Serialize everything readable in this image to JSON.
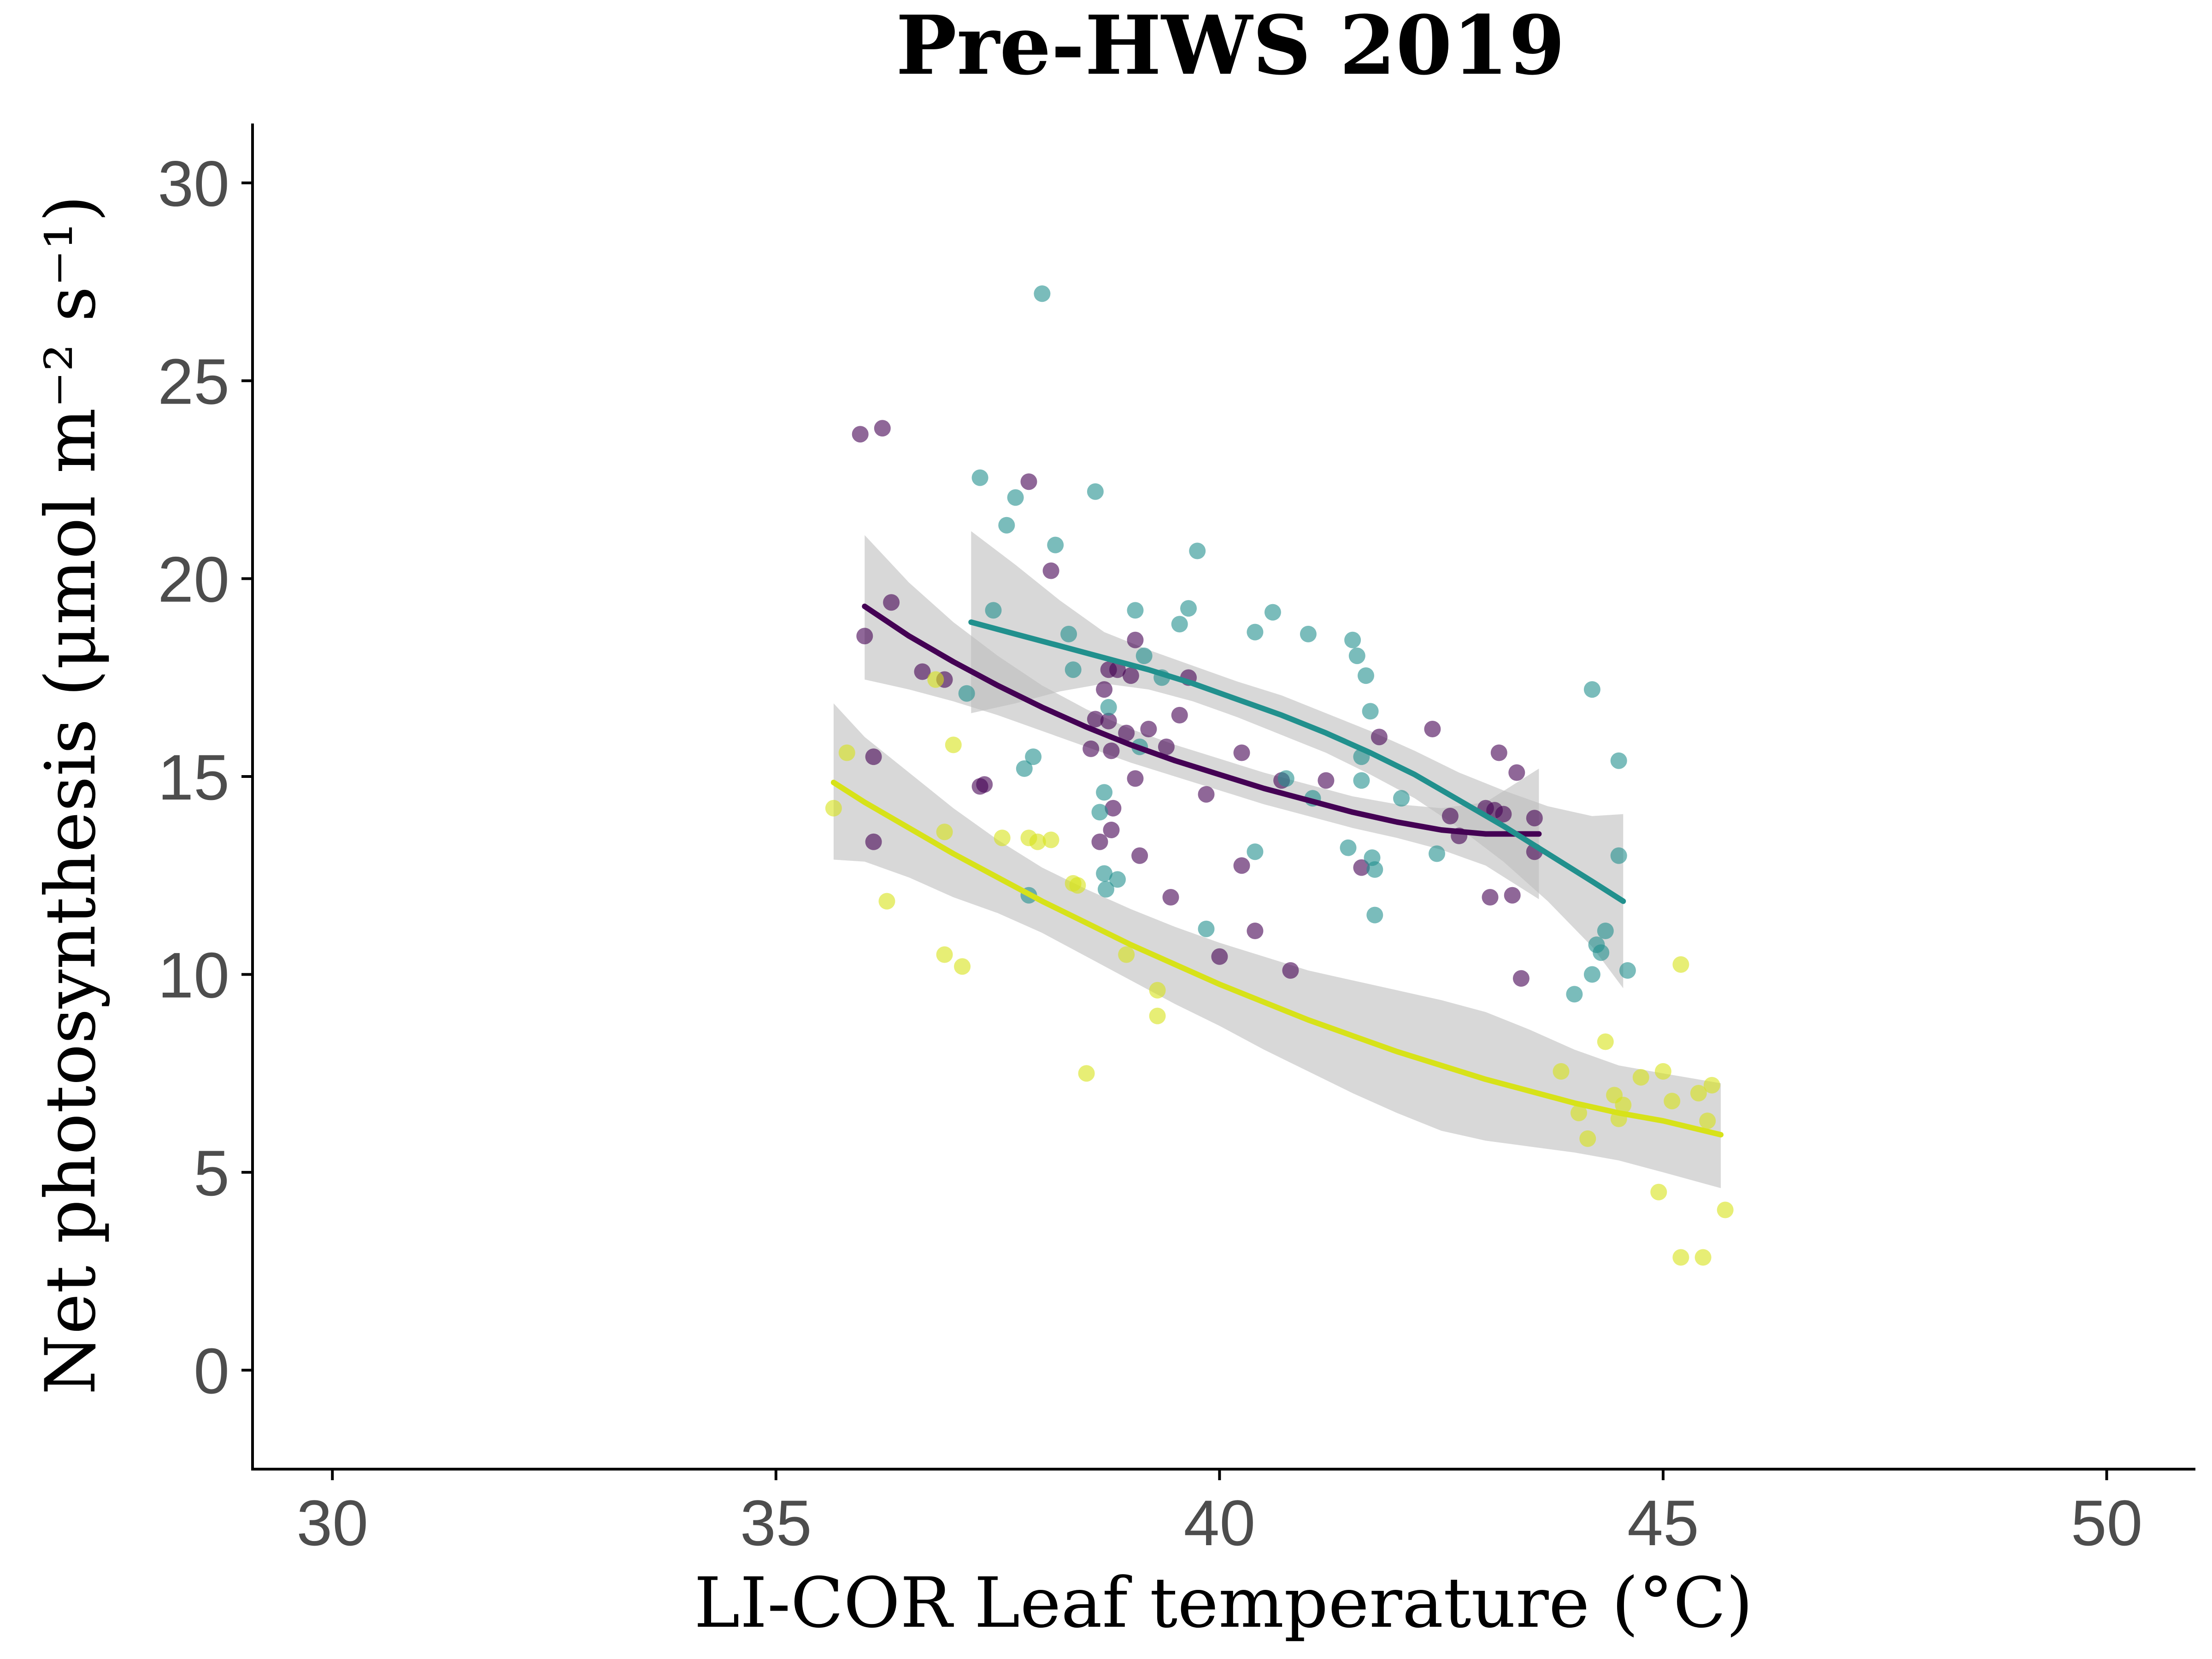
{
  "chart_data": {
    "type": "scatter",
    "title": "Pre-HWS 2019",
    "xlabel": "LI-COR Leaf temperature (°C)",
    "ylabel": "Net photosynthesis (μmol m⁻² s⁻¹)",
    "xlim": [
      29.1,
      51.0
    ],
    "ylim": [
      -2.5,
      31.5
    ],
    "xticks": [
      30,
      35,
      40,
      45,
      50
    ],
    "yticks": [
      0,
      5,
      10,
      15,
      20,
      25,
      30
    ],
    "grid": false,
    "legend": "none",
    "series": [
      {
        "name": "purple",
        "color": "#440154",
        "fit_color": "#440154",
        "points": [
          [
            35.95,
            23.65
          ],
          [
            36.2,
            23.8
          ],
          [
            36.0,
            18.55
          ],
          [
            36.1,
            15.5
          ],
          [
            36.1,
            13.35
          ],
          [
            36.3,
            19.4
          ],
          [
            36.65,
            17.65
          ],
          [
            36.9,
            17.45
          ],
          [
            37.3,
            14.75
          ],
          [
            37.35,
            14.8
          ],
          [
            37.85,
            22.45
          ],
          [
            38.1,
            20.2
          ],
          [
            38.55,
            15.7
          ],
          [
            38.6,
            16.45
          ],
          [
            38.65,
            13.35
          ],
          [
            38.7,
            17.2
          ],
          [
            38.75,
            17.7
          ],
          [
            38.75,
            16.4
          ],
          [
            38.78,
            15.65
          ],
          [
            38.78,
            13.65
          ],
          [
            38.8,
            14.2
          ],
          [
            38.85,
            17.7
          ],
          [
            38.95,
            16.1
          ],
          [
            39.0,
            17.55
          ],
          [
            39.05,
            18.45
          ],
          [
            39.05,
            14.95
          ],
          [
            39.1,
            13.0
          ],
          [
            39.2,
            16.2
          ],
          [
            39.4,
            15.75
          ],
          [
            39.45,
            11.95
          ],
          [
            39.55,
            16.55
          ],
          [
            39.65,
            17.5
          ],
          [
            39.85,
            14.55
          ],
          [
            40.0,
            10.45
          ],
          [
            40.25,
            15.6
          ],
          [
            40.25,
            12.75
          ],
          [
            40.4,
            11.1
          ],
          [
            40.7,
            14.9
          ],
          [
            40.8,
            10.1
          ],
          [
            41.2,
            14.9
          ],
          [
            41.6,
            12.7
          ],
          [
            41.8,
            16.0
          ],
          [
            42.4,
            16.2
          ],
          [
            42.6,
            14.0
          ],
          [
            42.7,
            13.5
          ],
          [
            43.0,
            14.2
          ],
          [
            43.05,
            11.95
          ],
          [
            43.1,
            14.15
          ],
          [
            43.15,
            15.6
          ],
          [
            43.2,
            14.05
          ],
          [
            43.3,
            12.0
          ],
          [
            43.35,
            15.1
          ],
          [
            43.4,
            9.9
          ],
          [
            43.55,
            13.95
          ],
          [
            43.55,
            13.1
          ]
        ],
        "fit_x": [
          36.0,
          36.5,
          37.0,
          37.5,
          38.0,
          38.5,
          39.0,
          39.5,
          40.0,
          40.5,
          41.0,
          41.5,
          42.0,
          42.5,
          43.0,
          43.6
        ],
        "fit_y": [
          19.3,
          18.55,
          17.9,
          17.3,
          16.75,
          16.25,
          15.8,
          15.4,
          15.05,
          14.7,
          14.4,
          14.1,
          13.85,
          13.65,
          13.55,
          13.55
        ],
        "band_lower": [
          17.45,
          17.2,
          16.9,
          16.55,
          16.15,
          15.75,
          15.35,
          15.0,
          14.65,
          14.3,
          14.0,
          13.7,
          13.45,
          13.15,
          12.75,
          11.9
        ],
        "band_upper": [
          21.1,
          19.9,
          18.9,
          18.05,
          17.3,
          16.7,
          16.2,
          15.8,
          15.45,
          15.1,
          14.8,
          14.5,
          14.3,
          14.2,
          14.35,
          15.2
        ]
      },
      {
        "name": "teal",
        "color": "#21908d",
        "fit_color": "#21908d",
        "points": [
          [
            37.15,
            17.1
          ],
          [
            37.3,
            22.55
          ],
          [
            37.45,
            19.2
          ],
          [
            37.6,
            21.35
          ],
          [
            37.7,
            22.05
          ],
          [
            37.8,
            15.2
          ],
          [
            37.85,
            12.0
          ],
          [
            37.9,
            15.5
          ],
          [
            38.0,
            27.2
          ],
          [
            38.15,
            20.85
          ],
          [
            38.3,
            18.6
          ],
          [
            38.35,
            17.7
          ],
          [
            38.6,
            22.2
          ],
          [
            38.65,
            14.1
          ],
          [
            38.7,
            14.6
          ],
          [
            38.7,
            12.55
          ],
          [
            38.72,
            12.15
          ],
          [
            38.75,
            16.75
          ],
          [
            38.85,
            12.4
          ],
          [
            39.05,
            19.2
          ],
          [
            39.1,
            15.75
          ],
          [
            39.15,
            18.05
          ],
          [
            39.35,
            17.5
          ],
          [
            39.55,
            18.85
          ],
          [
            39.65,
            19.25
          ],
          [
            39.75,
            20.7
          ],
          [
            39.85,
            11.15
          ],
          [
            40.4,
            18.65
          ],
          [
            40.4,
            13.1
          ],
          [
            40.6,
            19.15
          ],
          [
            40.75,
            14.95
          ],
          [
            41.0,
            18.6
          ],
          [
            41.05,
            14.45
          ],
          [
            41.45,
            13.2
          ],
          [
            41.5,
            18.45
          ],
          [
            41.55,
            18.05
          ],
          [
            41.6,
            15.5
          ],
          [
            41.6,
            14.9
          ],
          [
            41.65,
            17.55
          ],
          [
            41.7,
            16.65
          ],
          [
            41.72,
            12.95
          ],
          [
            41.75,
            11.5
          ],
          [
            41.75,
            12.65
          ],
          [
            42.05,
            14.45
          ],
          [
            42.45,
            13.05
          ],
          [
            44.0,
            9.5
          ],
          [
            44.2,
            17.2
          ],
          [
            44.2,
            10.0
          ],
          [
            44.25,
            10.75
          ],
          [
            44.3,
            10.55
          ],
          [
            44.35,
            11.1
          ],
          [
            44.5,
            15.4
          ],
          [
            44.5,
            13.0
          ],
          [
            44.6,
            10.1
          ]
        ],
        "fit_x": [
          37.2,
          37.7,
          38.2,
          38.7,
          39.2,
          39.7,
          40.2,
          40.7,
          41.2,
          41.7,
          42.2,
          42.7,
          43.2,
          43.7,
          44.2,
          44.55
        ],
        "fit_y": [
          18.9,
          18.6,
          18.3,
          18.0,
          17.7,
          17.35,
          16.95,
          16.55,
          16.1,
          15.6,
          15.05,
          14.4,
          13.75,
          13.05,
          12.35,
          11.85
        ],
        "band_lower": [
          16.6,
          16.85,
          17.15,
          17.35,
          17.2,
          16.9,
          16.5,
          16.05,
          15.6,
          15.05,
          14.45,
          13.7,
          12.85,
          11.85,
          10.7,
          9.65
        ],
        "band_upper": [
          21.2,
          20.35,
          19.45,
          18.65,
          18.2,
          17.8,
          17.4,
          17.05,
          16.6,
          16.15,
          15.65,
          15.1,
          14.65,
          14.25,
          14.0,
          14.05
        ]
      },
      {
        "name": "yellow",
        "color": "#d7e219",
        "fit_color": "#d7e219",
        "points": [
          [
            35.65,
            14.2
          ],
          [
            35.8,
            15.6
          ],
          [
            36.25,
            11.85
          ],
          [
            36.8,
            17.45
          ],
          [
            36.9,
            13.6
          ],
          [
            36.9,
            10.5
          ],
          [
            37.0,
            15.8
          ],
          [
            37.1,
            10.2
          ],
          [
            37.55,
            13.45
          ],
          [
            37.85,
            13.45
          ],
          [
            37.95,
            13.35
          ],
          [
            38.1,
            13.4
          ],
          [
            38.35,
            12.3
          ],
          [
            38.4,
            12.25
          ],
          [
            38.5,
            7.5
          ],
          [
            38.95,
            10.5
          ],
          [
            39.3,
            9.6
          ],
          [
            39.3,
            8.95
          ],
          [
            43.85,
            7.55
          ],
          [
            44.05,
            6.5
          ],
          [
            44.15,
            5.85
          ],
          [
            44.35,
            8.3
          ],
          [
            44.45,
            6.95
          ],
          [
            44.5,
            6.35
          ],
          [
            44.55,
            6.7
          ],
          [
            44.75,
            7.4
          ],
          [
            44.95,
            4.5
          ],
          [
            45.0,
            7.55
          ],
          [
            45.1,
            6.8
          ],
          [
            45.2,
            10.25
          ],
          [
            45.2,
            2.85
          ],
          [
            45.4,
            7.0
          ],
          [
            45.45,
            2.85
          ],
          [
            45.5,
            6.3
          ],
          [
            45.55,
            7.2
          ],
          [
            45.7,
            4.05
          ]
        ],
        "fit_x": [
          35.65,
          36.0,
          36.5,
          37.0,
          37.5,
          38.0,
          38.5,
          39.0,
          39.5,
          40.0,
          40.5,
          41.0,
          41.5,
          42.0,
          42.5,
          43.0,
          43.5,
          44.0,
          44.5,
          45.0,
          45.65
        ],
        "fit_y": [
          14.85,
          14.35,
          13.7,
          13.05,
          12.45,
          11.85,
          11.3,
          10.75,
          10.25,
          9.75,
          9.3,
          8.85,
          8.45,
          8.05,
          7.7,
          7.35,
          7.05,
          6.75,
          6.5,
          6.3,
          5.95
        ],
        "band_lower": [
          12.9,
          12.85,
          12.45,
          11.95,
          11.55,
          11.05,
          10.45,
          9.85,
          9.25,
          8.7,
          8.1,
          7.55,
          7.0,
          6.5,
          6.05,
          5.8,
          5.65,
          5.5,
          5.3,
          5.0,
          4.6
        ],
        "band_upper": [
          16.85,
          16.0,
          15.1,
          14.2,
          13.4,
          12.7,
          12.15,
          11.65,
          11.2,
          10.8,
          10.45,
          10.1,
          9.85,
          9.6,
          9.35,
          9.05,
          8.6,
          8.1,
          7.7,
          7.5,
          7.25
        ]
      }
    ]
  }
}
